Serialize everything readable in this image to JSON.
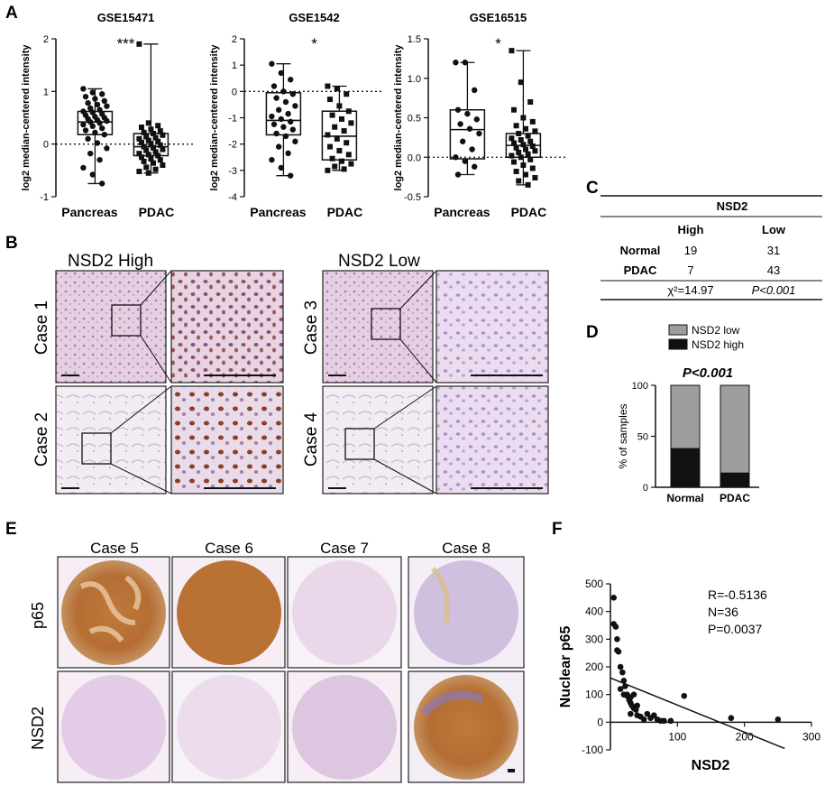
{
  "panel_letters": {
    "a": "A",
    "b": "B",
    "c": "C",
    "d": "D",
    "e": "E",
    "f": "F"
  },
  "chart_data": [
    {
      "type": "box",
      "title": "GSE15471",
      "ylabel": "log2 median-centered intensity",
      "ylim": [
        -1,
        2
      ],
      "yticks": [
        "-1",
        "0",
        "1",
        "2"
      ],
      "categories": [
        "Pancreas",
        "PDAC"
      ],
      "significance": "***",
      "boxes": [
        {
          "name": "Pancreas",
          "min": -0.75,
          "q1": 0.18,
          "median": 0.42,
          "q3": 0.62,
          "max": 1.05,
          "points": [
            1.05,
            0.98,
            0.95,
            0.9,
            0.86,
            0.82,
            0.78,
            0.75,
            0.72,
            0.68,
            0.65,
            0.62,
            0.6,
            0.57,
            0.55,
            0.52,
            0.5,
            0.48,
            0.46,
            0.44,
            0.42,
            0.4,
            0.37,
            0.34,
            0.3,
            0.26,
            0.22,
            0.18,
            0.1,
            0.02,
            -0.08,
            -0.18,
            -0.3,
            -0.45,
            -0.58,
            -0.75
          ]
        },
        {
          "name": "PDAC",
          "min": -0.55,
          "q1": -0.22,
          "median": -0.05,
          "q3": 0.2,
          "max": 1.9,
          "points": [
            1.9,
            0.4,
            0.35,
            0.32,
            0.28,
            0.25,
            0.22,
            0.2,
            0.17,
            0.14,
            0.12,
            0.1,
            0.07,
            0.05,
            0.03,
            0.01,
            -0.02,
            -0.05,
            -0.07,
            -0.1,
            -0.12,
            -0.15,
            -0.18,
            -0.2,
            -0.22,
            -0.25,
            -0.28,
            -0.3,
            -0.33,
            -0.36,
            -0.4,
            -0.44,
            -0.48,
            -0.52,
            -0.55
          ]
        }
      ],
      "markers": [
        "circle",
        "square"
      ]
    },
    {
      "type": "box",
      "title": "GSE1542",
      "ylabel": "log2 median-centered intensity",
      "ylim": [
        -4,
        2
      ],
      "yticks": [
        "-4",
        "-3",
        "-2",
        "-1",
        "0",
        "1",
        "2"
      ],
      "categories": [
        "Pancreas",
        "PDAC"
      ],
      "significance": "*",
      "boxes": [
        {
          "name": "Pancreas",
          "min": -3.2,
          "q1": -1.65,
          "median": -1.1,
          "q3": -0.05,
          "max": 1.05,
          "points": [
            1.05,
            0.7,
            0.45,
            0.2,
            0.0,
            -0.1,
            -0.25,
            -0.4,
            -0.55,
            -0.7,
            -0.85,
            -0.95,
            -1.05,
            -1.15,
            -1.25,
            -1.35,
            -1.45,
            -1.6,
            -1.7,
            -1.9,
            -2.1,
            -2.35,
            -2.6,
            -2.9,
            -3.2
          ]
        },
        {
          "name": "PDAC",
          "min": -3.0,
          "q1": -2.6,
          "median": -1.7,
          "q3": -0.75,
          "max": 0.2,
          "points": [
            0.2,
            0.1,
            -0.1,
            -0.3,
            -0.55,
            -0.75,
            -0.9,
            -1.05,
            -1.2,
            -1.35,
            -1.5,
            -1.65,
            -1.8,
            -1.95,
            -2.1,
            -2.25,
            -2.4,
            -2.55,
            -2.65,
            -2.75,
            -2.85,
            -2.95,
            -3.0
          ]
        }
      ],
      "markers": [
        "circle",
        "square"
      ]
    },
    {
      "type": "box",
      "title": "GSE16515",
      "ylabel": "log2 median-centered intensity",
      "ylim": [
        -0.5,
        1.5
      ],
      "yticks": [
        "-0.5",
        "0.0",
        "0.5",
        "1.0",
        "1.5"
      ],
      "categories": [
        "Pancreas",
        "PDAC"
      ],
      "significance": "*",
      "boxes": [
        {
          "name": "Pancreas",
          "min": -0.22,
          "q1": -0.02,
          "median": 0.35,
          "q3": 0.6,
          "max": 1.2,
          "points": [
            1.2,
            1.2,
            0.85,
            0.6,
            0.55,
            0.48,
            0.42,
            0.36,
            0.3,
            0.2,
            0.1,
            0.0,
            -0.05,
            -0.12,
            -0.22
          ]
        },
        {
          "name": "PDAC",
          "min": -0.35,
          "q1": 0.0,
          "median": 0.15,
          "q3": 0.3,
          "max": 1.35,
          "points": [
            1.35,
            0.95,
            0.7,
            0.6,
            0.5,
            0.45,
            0.4,
            0.36,
            0.33,
            0.3,
            0.27,
            0.24,
            0.22,
            0.2,
            0.18,
            0.16,
            0.14,
            0.12,
            0.1,
            0.08,
            0.06,
            0.04,
            0.02,
            0.0,
            -0.03,
            -0.06,
            -0.1,
            -0.14,
            -0.18,
            -0.22,
            -0.26,
            -0.3,
            -0.35
          ]
        }
      ],
      "markers": [
        "circle",
        "square"
      ]
    },
    {
      "type": "bar",
      "stacked": true,
      "title": "P<0.001",
      "ylabel": "% of samples",
      "ylim": [
        0,
        100
      ],
      "yticks": [
        "0",
        "50",
        "100"
      ],
      "categories": [
        "Normal",
        "PDAC"
      ],
      "series": [
        {
          "name": "NSD2 low",
          "values": [
            62,
            86
          ],
          "color": "#9e9e9e"
        },
        {
          "name": "NSD2 high",
          "values": [
            38,
            14
          ],
          "color": "#111111"
        }
      ],
      "legend": "top"
    },
    {
      "type": "scatter",
      "xlabel": "NSD2",
      "ylabel": "Nuclear p65",
      "xlim": [
        0,
        300
      ],
      "ylim": [
        -100,
        500
      ],
      "xticks": [
        "100",
        "200",
        "300"
      ],
      "yticks": [
        "-100",
        "0",
        "100",
        "200",
        "300",
        "400",
        "500"
      ],
      "points": [
        [
          5,
          450
        ],
        [
          5,
          355
        ],
        [
          8,
          345
        ],
        [
          10,
          300
        ],
        [
          10,
          260
        ],
        [
          12,
          255
        ],
        [
          15,
          200
        ],
        [
          18,
          180
        ],
        [
          20,
          150
        ],
        [
          20,
          100
        ],
        [
          22,
          130
        ],
        [
          25,
          95
        ],
        [
          28,
          80
        ],
        [
          30,
          90
        ],
        [
          30,
          70
        ],
        [
          32,
          60
        ],
        [
          35,
          50
        ],
        [
          38,
          45
        ],
        [
          40,
          25
        ],
        [
          45,
          20
        ],
        [
          50,
          10
        ],
        [
          55,
          30
        ],
        [
          60,
          15
        ],
        [
          65,
          25
        ],
        [
          70,
          10
        ],
        [
          75,
          5
        ],
        [
          80,
          5
        ],
        [
          90,
          5
        ],
        [
          110,
          95
        ],
        [
          180,
          15
        ],
        [
          250,
          10
        ],
        [
          30,
          30
        ],
        [
          25,
          100
        ],
        [
          15,
          120
        ],
        [
          40,
          60
        ],
        [
          35,
          100
        ]
      ],
      "fit_line": {
        "x0": 0,
        "y0": 160,
        "x1": 260,
        "y1": -95
      },
      "annotations": [
        "R=-0.5136",
        "N=36",
        "P=0.0037"
      ]
    }
  ],
  "table": {
    "title": "NSD2",
    "headers": [
      "",
      "High",
      "Low"
    ],
    "rows": [
      [
        "Normal",
        "19",
        "31"
      ],
      [
        "PDAC",
        "7",
        "43"
      ]
    ],
    "stat_left": "χ²=14.97",
    "stat_right": "P<0.001"
  },
  "panel_b": {
    "high_label": "NSD2 High",
    "low_label": "NSD2 Low",
    "cases": [
      "Case 1",
      "Case 2",
      "Case 3",
      "Case 4"
    ]
  },
  "panel_e": {
    "columns": [
      "Case 5",
      "Case 6",
      "Case 7",
      "Case 8"
    ],
    "rows": [
      "p65",
      "NSD2"
    ]
  }
}
